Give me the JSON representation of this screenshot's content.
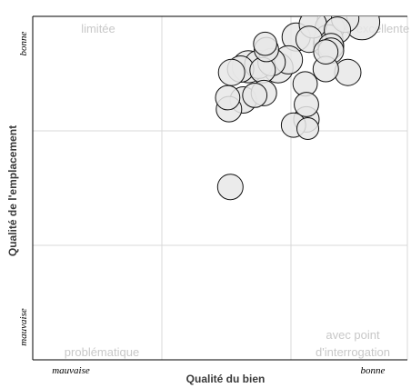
{
  "chart_data": {
    "type": "scatter",
    "title": "",
    "xlabel": "Qualité du bien",
    "ylabel": "Qualité de l'emplacement",
    "xlim": [
      0,
      3
    ],
    "ylim": [
      0,
      3
    ],
    "x_tick_labels": {
      "low": "mauvaise",
      "high": "bonne"
    },
    "y_tick_labels": {
      "low": "mauvaise",
      "high": "bonne"
    },
    "quadrant_labels": {
      "top_left": "limitée",
      "top_right": "excellente",
      "bottom_left": "problématique",
      "bottom_right_line1": "avec point",
      "bottom_right_line2": "d'interrogation"
    },
    "grid": true,
    "points": [
      {
        "x": 2.32,
        "y": 2.96,
        "size": 0.6
      },
      {
        "x": 2.42,
        "y": 2.98,
        "size": 0.45
      },
      {
        "x": 2.55,
        "y": 2.95,
        "size": 1.0
      },
      {
        "x": 2.17,
        "y": 2.93,
        "size": 0.45
      },
      {
        "x": 2.3,
        "y": 2.9,
        "size": 0.55
      },
      {
        "x": 2.36,
        "y": 2.88,
        "size": 0.4
      },
      {
        "x": 2.04,
        "y": 2.82,
        "size": 0.5
      },
      {
        "x": 2.14,
        "y": 2.8,
        "size": 0.4
      },
      {
        "x": 2.29,
        "y": 2.8,
        "size": 0.55
      },
      {
        "x": 2.29,
        "y": 2.76,
        "size": 0.6
      },
      {
        "x": 2.31,
        "y": 2.74,
        "size": 0.35
      },
      {
        "x": 2.31,
        "y": 2.7,
        "size": 0.35
      },
      {
        "x": 2.27,
        "y": 2.69,
        "size": 0.3
      },
      {
        "x": 1.8,
        "y": 2.76,
        "size": 0.25
      },
      {
        "x": 1.81,
        "y": 2.71,
        "size": 0.3
      },
      {
        "x": 1.98,
        "y": 2.62,
        "size": 0.5
      },
      {
        "x": 1.85,
        "y": 2.6,
        "size": 0.45
      },
      {
        "x": 1.75,
        "y": 2.58,
        "size": 0.5
      },
      {
        "x": 1.67,
        "y": 2.56,
        "size": 0.75
      },
      {
        "x": 1.9,
        "y": 2.55,
        "size": 0.6
      },
      {
        "x": 1.61,
        "y": 2.54,
        "size": 0.4
      },
      {
        "x": 1.78,
        "y": 2.53,
        "size": 0.35
      },
      {
        "x": 1.54,
        "y": 2.51,
        "size": 0.4
      },
      {
        "x": 2.27,
        "y": 2.54,
        "size": 0.35
      },
      {
        "x": 2.44,
        "y": 2.51,
        "size": 0.4
      },
      {
        "x": 2.11,
        "y": 2.41,
        "size": 0.3
      },
      {
        "x": 1.79,
        "y": 2.33,
        "size": 0.35
      },
      {
        "x": 1.72,
        "y": 2.31,
        "size": 0.3
      },
      {
        "x": 1.51,
        "y": 2.29,
        "size": 0.3
      },
      {
        "x": 1.63,
        "y": 2.27,
        "size": 0.4
      },
      {
        "x": 2.12,
        "y": 2.23,
        "size": 0.3
      },
      {
        "x": 1.52,
        "y": 2.19,
        "size": 0.35
      },
      {
        "x": 2.12,
        "y": 2.1,
        "size": 0.35
      },
      {
        "x": 2.02,
        "y": 2.05,
        "size": 0.3
      },
      {
        "x": 2.13,
        "y": 2.02,
        "size": 0.2
      },
      {
        "x": 1.53,
        "y": 1.51,
        "size": 0.35
      }
    ]
  }
}
